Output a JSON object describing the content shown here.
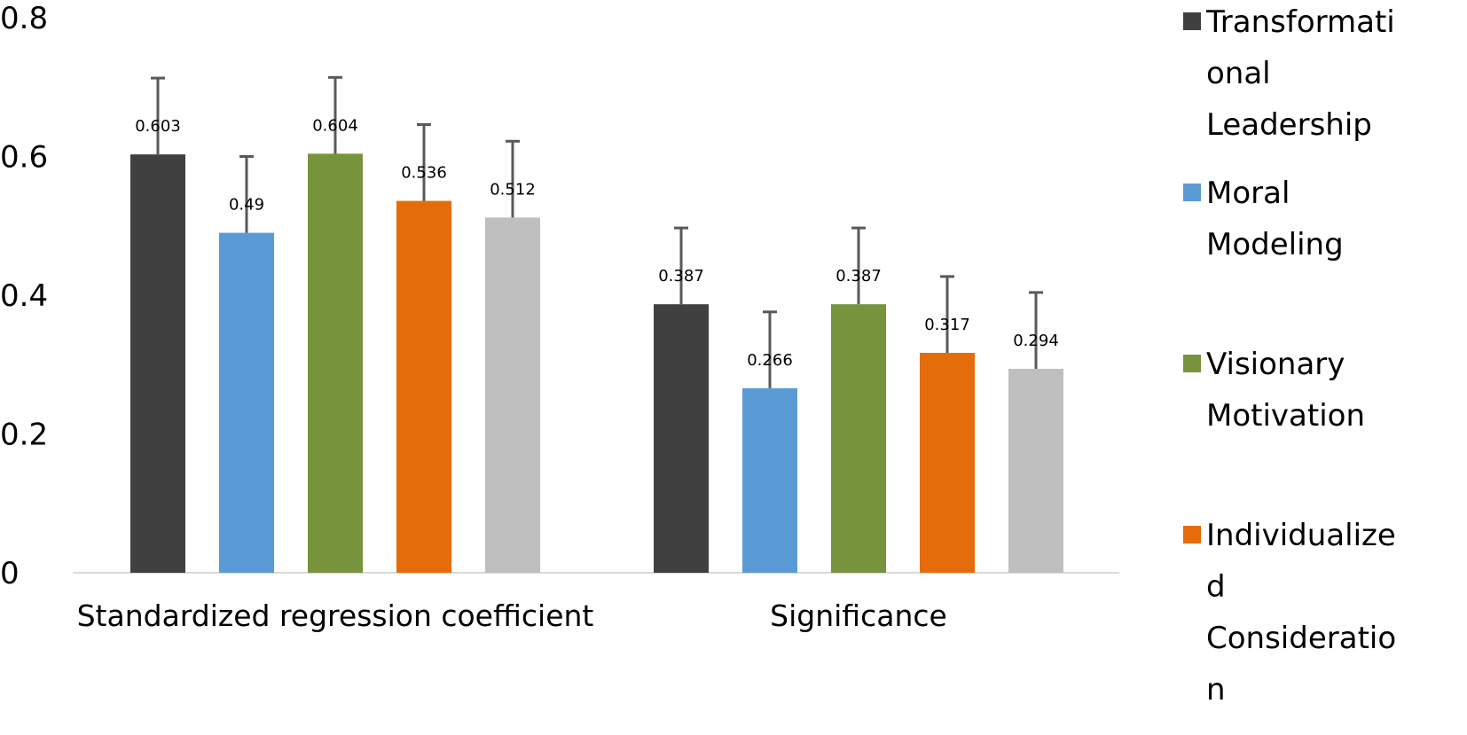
{
  "chart_data": {
    "type": "bar",
    "categories": [
      "Standardized regression coefficient",
      "Significance"
    ],
    "series": [
      {
        "name": "Transformational Leadership",
        "color": "#404040",
        "values": [
          0.603,
          0.387
        ],
        "error": [
          0.11,
          0.11
        ]
      },
      {
        "name": "Moral Modeling",
        "color": "#5b9bd5",
        "values": [
          0.49,
          0.266
        ],
        "error": [
          0.11,
          0.11
        ]
      },
      {
        "name": "Visionary Motivation",
        "color": "#77933c",
        "values": [
          0.604,
          0.387
        ],
        "error": [
          0.11,
          0.11
        ]
      },
      {
        "name": "Individualized Consideration",
        "color": "#e46c0a",
        "values": [
          0.536,
          0.317
        ],
        "error": [
          0.11,
          0.11
        ]
      },
      {
        "name": "",
        "color": "#bfbfbf",
        "values": [
          0.512,
          0.294
        ],
        "error": [
          0.11,
          0.11
        ]
      }
    ],
    "data_labels": [
      [
        "0.603",
        "0.387"
      ],
      [
        "0.49",
        "0.266"
      ],
      [
        "0.604",
        "0.387"
      ],
      [
        "0.536",
        "0.317"
      ],
      [
        "0.512",
        "0.294"
      ]
    ],
    "y_tick_labels": [
      "0",
      "0.2",
      "0.4",
      "0.6",
      "0.8"
    ],
    "ylim": [
      0,
      0.8
    ],
    "grid": false,
    "legend_position": "right",
    "legend_lines": [
      [
        "Transformati",
        "onal",
        "Leadership"
      ],
      [
        "Moral",
        "Modeling"
      ],
      [
        "Visionary",
        "Motivation"
      ],
      [
        "Individualize",
        "d",
        "Consideratio",
        "n"
      ]
    ]
  }
}
